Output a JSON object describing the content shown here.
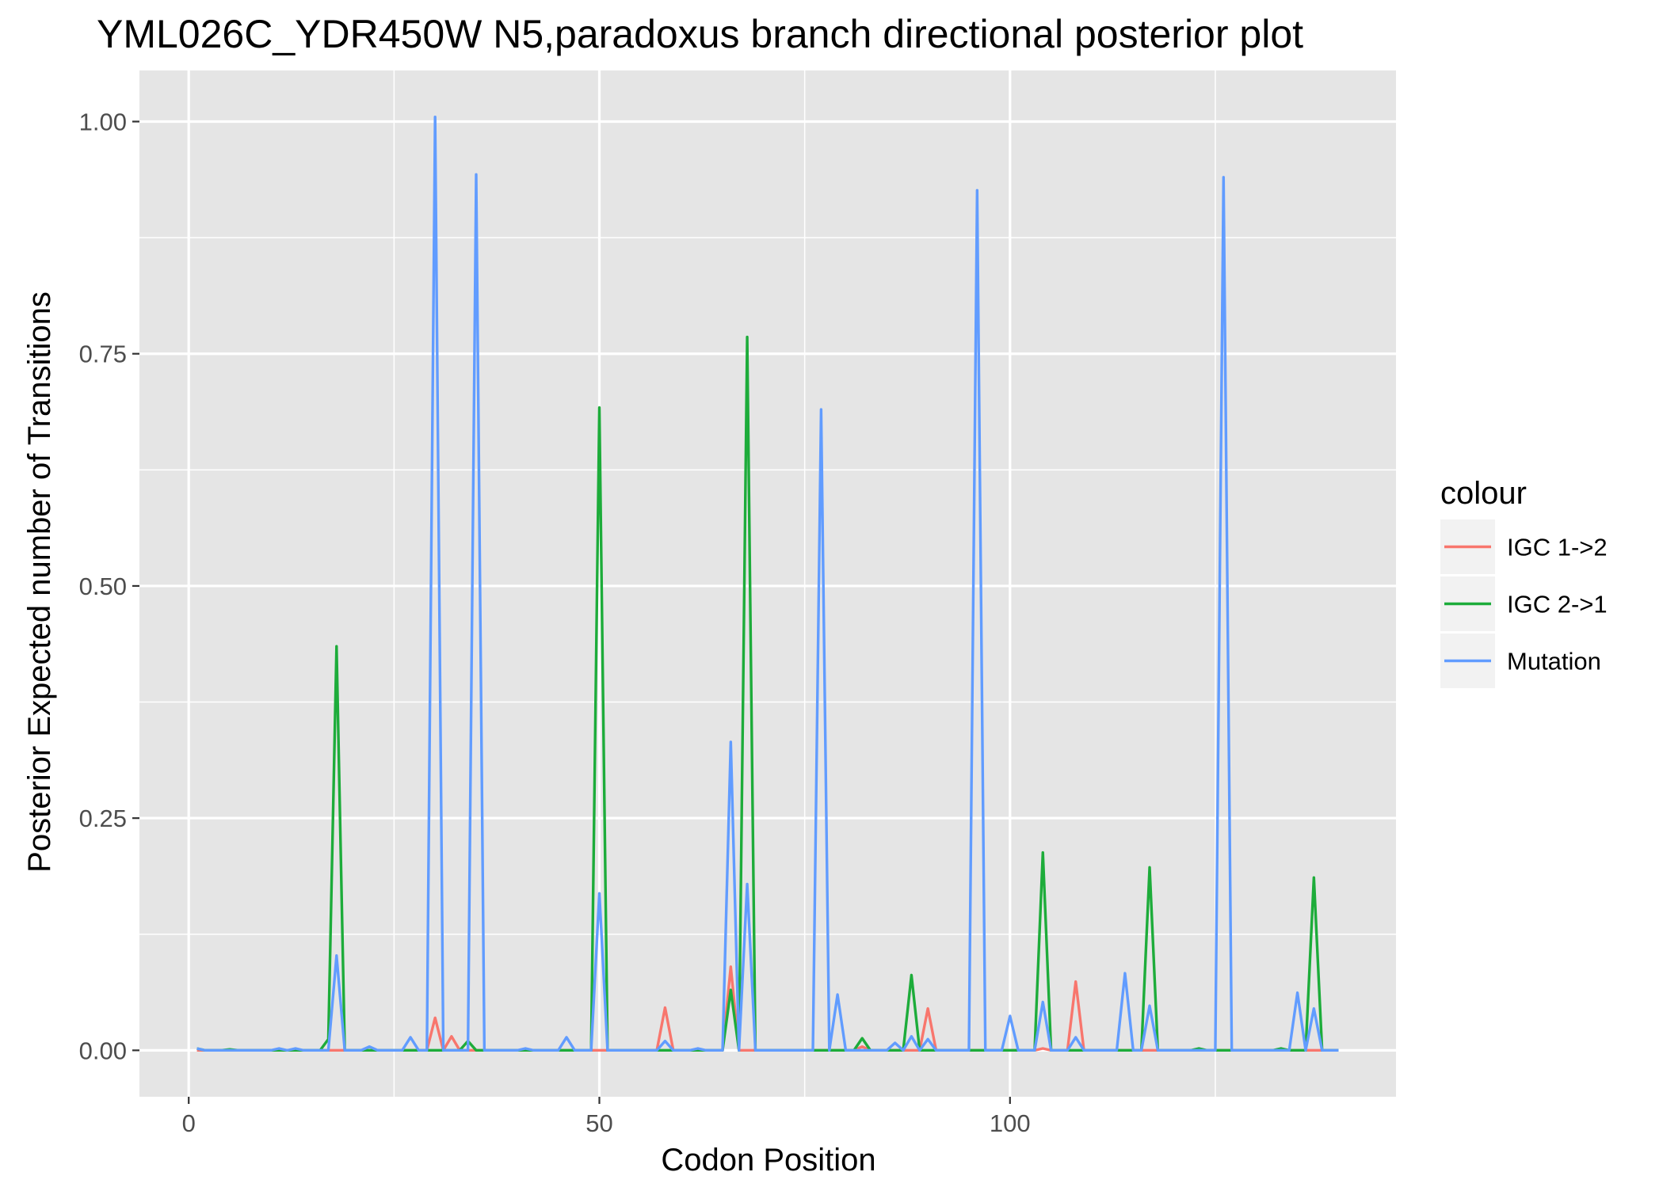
{
  "chart_data": {
    "type": "line",
    "title": "YML026C_YDR450W N5,paradoxus branch directional posterior plot",
    "xlabel": "Codon Position",
    "ylabel": "Posterior Expected number of Transitions",
    "xlim": [
      -6,
      147
    ],
    "ylim": [
      -0.05,
      1.055
    ],
    "x_ticks": [
      0,
      50,
      100
    ],
    "x_tick_labels": [
      "0",
      "50",
      "100"
    ],
    "x_minor_ticks": [
      25,
      75,
      125
    ],
    "y_ticks": [
      0,
      0.25,
      0.5,
      0.75,
      1.0
    ],
    "y_tick_labels": [
      "0.00",
      "0.25",
      "0.50",
      "0.75",
      "1.00"
    ],
    "y_minor_ticks": [
      0.125,
      0.375,
      0.625,
      0.875
    ],
    "grid": true,
    "background": "#e5e5e5",
    "legend": {
      "title": "colour",
      "position": "right"
    },
    "x_range": [
      1,
      140
    ],
    "series": [
      {
        "name": "IGC 1->2",
        "color": "#f8766d",
        "peaks": [
          [
            30,
            0.035
          ],
          [
            32,
            0.015
          ],
          [
            58,
            0.046
          ],
          [
            66,
            0.09
          ],
          [
            82,
            0.004
          ],
          [
            90,
            0.045
          ],
          [
            104,
            0.002
          ],
          [
            108,
            0.074
          ]
        ]
      },
      {
        "name": "IGC 2->1",
        "color": "#1dac3a",
        "peaks": [
          [
            1,
            0.002
          ],
          [
            5,
            0.001
          ],
          [
            17,
            0.012
          ],
          [
            18,
            0.435
          ],
          [
            34,
            0.01
          ],
          [
            50,
            0.692
          ],
          [
            66,
            0.065
          ],
          [
            68,
            0.768
          ],
          [
            82,
            0.013
          ],
          [
            88,
            0.081
          ],
          [
            104,
            0.213
          ],
          [
            117,
            0.197
          ],
          [
            123,
            0.002
          ],
          [
            133,
            0.002
          ],
          [
            137,
            0.186
          ]
        ]
      },
      {
        "name": "Mutation",
        "color": "#619cff",
        "peaks": [
          [
            1,
            0.002
          ],
          [
            11,
            0.002
          ],
          [
            13,
            0.002
          ],
          [
            18,
            0.102
          ],
          [
            22,
            0.004
          ],
          [
            27,
            0.014
          ],
          [
            30,
            1.005
          ],
          [
            35,
            0.943
          ],
          [
            41,
            0.002
          ],
          [
            46,
            0.014
          ],
          [
            50,
            0.169
          ],
          [
            58,
            0.01
          ],
          [
            62,
            0.002
          ],
          [
            66,
            0.332
          ],
          [
            68,
            0.179
          ],
          [
            77,
            0.69
          ],
          [
            79,
            0.06
          ],
          [
            86,
            0.008
          ],
          [
            88,
            0.015
          ],
          [
            90,
            0.012
          ],
          [
            96,
            0.926
          ],
          [
            100,
            0.037
          ],
          [
            104,
            0.052
          ],
          [
            108,
            0.014
          ],
          [
            114,
            0.083
          ],
          [
            117,
            0.048
          ],
          [
            126,
            0.94
          ],
          [
            135,
            0.062
          ],
          [
            137,
            0.045
          ]
        ]
      }
    ]
  }
}
